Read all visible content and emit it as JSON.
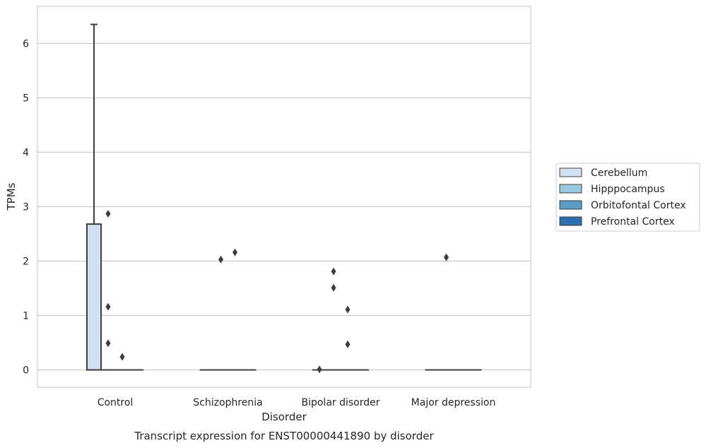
{
  "caption": "Transcript expression for ENST00000441890 by disorder",
  "chart_data": {
    "type": "box",
    "xlabel": "Disorder",
    "ylabel": "TPMs",
    "ylim": [
      -0.3,
      6.65
    ],
    "yticks": [
      0,
      1,
      2,
      3,
      4,
      5,
      6
    ],
    "grid": "horizontal",
    "legend_position": "right",
    "categories": [
      "Control",
      "Schizophrenia",
      "Bipolar disorder",
      "Major depression"
    ],
    "series": [
      {
        "name": "Cerebellum",
        "color": "#d1e1f1",
        "boxes": [
          {
            "q1": 0,
            "median": 0,
            "q3": 2.68,
            "whisker_low": 0,
            "whisker_high": 6.35,
            "outliers": []
          },
          {
            "q1": 0,
            "median": 0,
            "q3": 0,
            "whisker_low": 0,
            "whisker_high": 0,
            "outliers": []
          },
          {
            "q1": 0,
            "median": 0,
            "q3": 0,
            "whisker_low": 0,
            "whisker_high": 0,
            "outliers": [
              0.01
            ]
          },
          {
            "q1": 0,
            "median": 0,
            "q3": 0,
            "whisker_low": 0,
            "whisker_high": 0,
            "outliers": []
          }
        ]
      },
      {
        "name": "Hipppocampus",
        "color": "#9ac8e0",
        "boxes": [
          {
            "q1": 0,
            "median": 0,
            "q3": 0,
            "whisker_low": 0,
            "whisker_high": 0,
            "outliers": [
              2.87,
              1.16,
              0.49
            ]
          },
          {
            "q1": 0,
            "median": 0,
            "q3": 0,
            "whisker_low": 0,
            "whisker_high": 0,
            "outliers": [
              2.03
            ]
          },
          {
            "q1": 0,
            "median": 0,
            "q3": 0,
            "whisker_low": 0,
            "whisker_high": 0,
            "outliers": [
              1.81,
              1.51
            ]
          },
          {
            "q1": 0,
            "median": 0,
            "q3": 0,
            "whisker_low": 0,
            "whisker_high": 0,
            "outliers": [
              2.07
            ]
          }
        ]
      },
      {
        "name": "Orbitofontal Cortex",
        "color": "#5b9bc8",
        "boxes": [
          {
            "q1": 0,
            "median": 0,
            "q3": 0,
            "whisker_low": 0,
            "whisker_high": 0,
            "outliers": [
              0.24
            ]
          },
          {
            "q1": 0,
            "median": 0,
            "q3": 0,
            "whisker_low": 0,
            "whisker_high": 0,
            "outliers": [
              2.16
            ]
          },
          {
            "q1": 0,
            "median": 0,
            "q3": 0,
            "whisker_low": 0,
            "whisker_high": 0,
            "outliers": [
              1.11,
              0.47
            ]
          },
          {
            "q1": 0,
            "median": 0,
            "q3": 0,
            "whisker_low": 0,
            "whisker_high": 0,
            "outliers": []
          }
        ]
      },
      {
        "name": "Prefrontal Cortex",
        "color": "#2c6fad",
        "boxes": [
          {
            "q1": 0,
            "median": 0,
            "q3": 0,
            "whisker_low": 0,
            "whisker_high": 0,
            "outliers": []
          },
          {
            "q1": 0,
            "median": 0,
            "q3": 0,
            "whisker_low": 0,
            "whisker_high": 0,
            "outliers": []
          },
          {
            "q1": 0,
            "median": 0,
            "q3": 0,
            "whisker_low": 0,
            "whisker_high": 0,
            "outliers": []
          },
          {
            "q1": 0,
            "median": 0,
            "q3": 0,
            "whisker_low": 0,
            "whisker_high": 0,
            "outliers": []
          }
        ]
      }
    ]
  }
}
